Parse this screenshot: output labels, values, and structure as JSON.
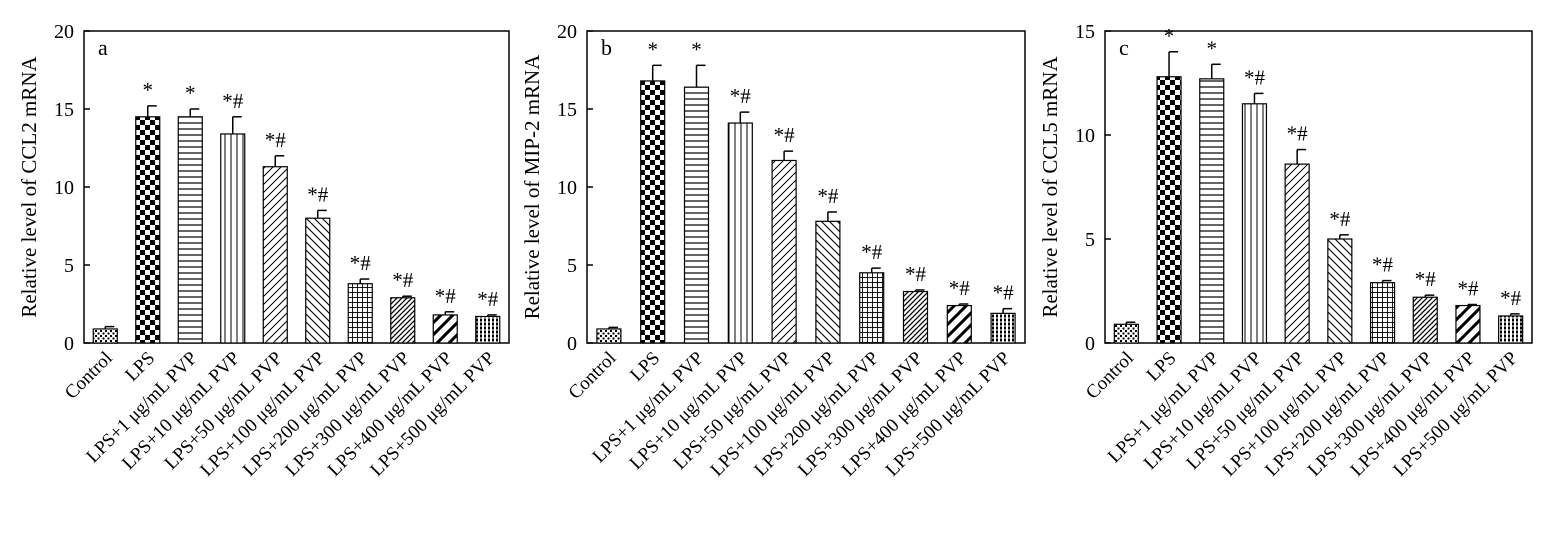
{
  "chart_data": [
    {
      "type": "bar",
      "panel_label": "a",
      "ylabel": "Relative level of CCL2 mRNA",
      "ylim": [
        0,
        20
      ],
      "yticks": [
        "0",
        "5",
        "10",
        "15",
        "20"
      ],
      "categories": [
        "Control",
        "LPS",
        "LPS+1 μg/mL PVP",
        "LPS+10 μg/mL PVP",
        "LPS+50 μg/mL PVP",
        "LPS+100 μg/mL PVP",
        "LPS+200 μg/mL PVP",
        "LPS+300 μg/mL PVP",
        "LPS+400 μg/mL PVP",
        "LPS+500 μg/mL PVP"
      ],
      "values": [
        0.9,
        14.5,
        14.5,
        13.4,
        11.3,
        8.0,
        3.8,
        2.9,
        1.8,
        1.7
      ],
      "errors": [
        0.15,
        0.7,
        0.5,
        1.1,
        0.7,
        0.5,
        0.3,
        0.1,
        0.2,
        0.1
      ],
      "significance": [
        "",
        "*",
        "*",
        "*#",
        "*#",
        "*#",
        "*#",
        "*#",
        "*#",
        "*#"
      ]
    },
    {
      "type": "bar",
      "panel_label": "b",
      "ylabel": "Relative level of MIP-2 mRNA",
      "ylim": [
        0,
        20
      ],
      "yticks": [
        "0",
        "5",
        "10",
        "15",
        "20"
      ],
      "categories": [
        "Control",
        "LPS",
        "LPS+1 μg/mL PVP",
        "LPS+10 μg/mL PVP",
        "LPS+50 μg/mL PVP",
        "LPS+100 μg/mL PVP",
        "LPS+200 μg/mL PVP",
        "LPS+300 μg/mL PVP",
        "LPS+400 μg/mL PVP",
        "LPS+500 μg/mL PVP"
      ],
      "values": [
        0.9,
        16.8,
        16.4,
        14.1,
        11.7,
        7.8,
        4.5,
        3.3,
        2.4,
        1.9
      ],
      "errors": [
        0.1,
        1.0,
        1.4,
        0.7,
        0.6,
        0.6,
        0.3,
        0.1,
        0.1,
        0.3
      ],
      "significance": [
        "",
        "*",
        "*",
        "*#",
        "*#",
        "*#",
        "*#",
        "*#",
        "*#",
        "*#"
      ]
    },
    {
      "type": "bar",
      "panel_label": "c",
      "ylabel": "Relative level of CCL5 mRNA",
      "ylim": [
        0,
        15
      ],
      "yticks": [
        "0",
        "5",
        "10",
        "15"
      ],
      "categories": [
        "Control",
        "LPS",
        "LPS+1 μg/mL PVP",
        "LPS+10 μg/mL PVP",
        "LPS+50 μg/mL PVP",
        "LPS+100 μg/mL PVP",
        "LPS+200 μg/mL PVP",
        "LPS+300 μg/mL PVP",
        "LPS+400 μg/mL PVP",
        "LPS+500 μg/mL PVP"
      ],
      "values": [
        0.9,
        12.8,
        12.7,
        11.5,
        8.6,
        5.0,
        2.9,
        2.2,
        1.8,
        1.3
      ],
      "errors": [
        0.1,
        1.2,
        0.7,
        0.5,
        0.7,
        0.2,
        0.1,
        0.1,
        0.05,
        0.1
      ],
      "significance": [
        "",
        "*",
        "*",
        "*#",
        "*#",
        "*#",
        "*#",
        "*#",
        "*#",
        "*#"
      ]
    }
  ]
}
